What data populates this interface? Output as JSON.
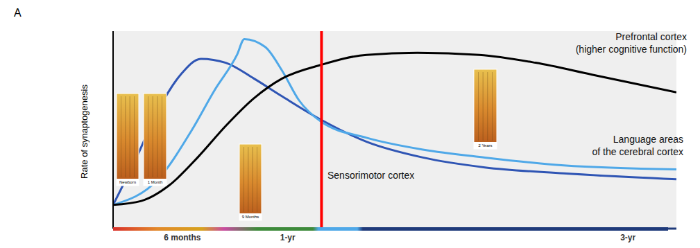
{
  "chart_data": {
    "type": "line",
    "panel": "A",
    "y_label": "Rate of synaptogenesis",
    "xlim": [
      0,
      100
    ],
    "xticks": [
      {
        "value": 12.3,
        "label": "6 months"
      },
      {
        "value": 31,
        "label": "1-yr"
      },
      {
        "value": 91.4,
        "label": "3-yr"
      }
    ],
    "ylim": [
      0,
      100
    ],
    "tick_labels": "x",
    "grid": false,
    "series": [
      {
        "name": "Sensorimotor cortex",
        "color": "#2f55b4",
        "x": [
          0,
          4,
          8,
          12,
          15.6,
          20,
          25,
          30,
          37,
          45,
          55,
          66,
          80,
          100
        ],
        "values": [
          12,
          35,
          60,
          78,
          86,
          84,
          76,
          67,
          55,
          44,
          36,
          31,
          28,
          25
        ]
      },
      {
        "name": "Language areas of the cerebral cortex",
        "color": "#4fa8e8",
        "x": [
          0,
          8,
          14,
          18,
          22,
          23.3,
          27,
          30,
          33,
          37,
          45,
          55,
          66,
          80,
          100
        ],
        "values": [
          12,
          25,
          50,
          70,
          88,
          96,
          92,
          80,
          65,
          54,
          46,
          40,
          36,
          32,
          30
        ]
      },
      {
        "name": "Prefrontal cortex (higher cognitive function)",
        "color": "#000000",
        "x": [
          0,
          5,
          10,
          15,
          20,
          25,
          30,
          37,
          45,
          54,
          65,
          75,
          85,
          100
        ],
        "values": [
          12,
          14,
          22,
          36,
          52,
          66,
          76,
          83,
          88,
          89,
          88,
          84,
          78,
          69
        ]
      }
    ],
    "vline": {
      "x": 37,
      "color": "#ff0000"
    },
    "images": [
      "Newborn",
      "1 Month",
      "9 Months",
      "2 Years"
    ]
  }
}
